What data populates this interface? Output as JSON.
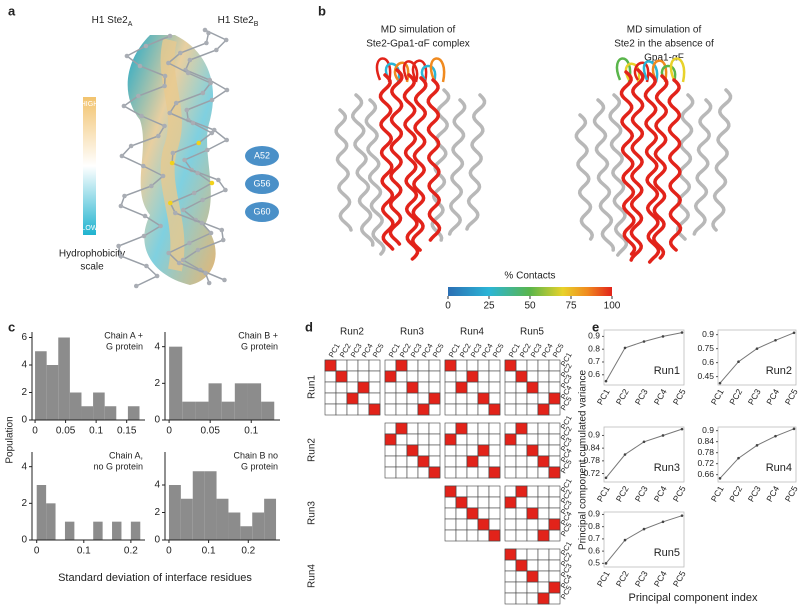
{
  "panel_a": {
    "label": "a",
    "left_title": {
      "text": "H1 Ste2",
      "sub": "A"
    },
    "right_title": {
      "text": "H1 Ste2",
      "sub": "B"
    },
    "scale_high": "HIGH",
    "scale_low": "LOW",
    "scale_title": [
      "Hydrophobicity",
      "scale"
    ],
    "residues": [
      "A52",
      "G56",
      "G60"
    ]
  },
  "panel_b": {
    "label": "b",
    "left_title": [
      "MD simulation of",
      "Ste2-Gpa1-αF complex"
    ],
    "right_title": [
      "MD simulation of",
      "Ste2 in the absence of",
      "Gpa1-αF"
    ],
    "colorbar_title": "% Contacts",
    "colorbar_lim": [
      0,
      100
    ],
    "colorbar_ticks": [
      0,
      25,
      50,
      75,
      100
    ]
  },
  "panel_c": {
    "label": "c",
    "ylabel": "Population",
    "xlabel": "Standard deviation of interface residues",
    "color": "#8c8c8c",
    "plots": [
      {
        "type": "histogram",
        "legend": [
          "Chain A +",
          "G protein"
        ],
        "bins": [
          0,
          0.019,
          0.038,
          0.057,
          0.076,
          0.095,
          0.114,
          0.133,
          0.152,
          0.171
        ],
        "counts": [
          5,
          4,
          6,
          2,
          1,
          2,
          1,
          0,
          1
        ],
        "xlim": [
          -0.005,
          0.18
        ],
        "xticks": [
          0,
          0.05,
          0.1,
          0.15
        ],
        "ylim": [
          0,
          6.4
        ],
        "yticks": [
          0,
          2,
          4,
          6
        ]
      },
      {
        "type": "histogram",
        "legend": [
          "Chain B +",
          "G protein"
        ],
        "bins": [
          0,
          0.016,
          0.032,
          0.048,
          0.064,
          0.08,
          0.096,
          0.112,
          0.128
        ],
        "counts": [
          4,
          1,
          1,
          2,
          1,
          2,
          2,
          1
        ],
        "xlim": [
          -0.005,
          0.135
        ],
        "xticks": [
          0,
          0.05,
          0.1
        ],
        "ylim": [
          0,
          4.8
        ],
        "yticks": [
          0,
          2,
          4
        ]
      },
      {
        "type": "histogram",
        "legend": [
          "Chain A,",
          "no G protein"
        ],
        "bins": [
          0,
          0.02,
          0.04,
          0.06,
          0.08,
          0.1,
          0.12,
          0.14,
          0.16,
          0.18,
          0.2,
          0.22
        ],
        "counts": [
          3,
          2,
          0,
          1,
          0,
          0,
          1,
          0,
          1,
          0,
          1
        ],
        "xlim": [
          -0.01,
          0.23
        ],
        "xticks": [
          0,
          0.1,
          0.2
        ],
        "ylim": [
          0,
          4.8
        ],
        "yticks": [
          0,
          2,
          4
        ]
      },
      {
        "type": "histogram",
        "legend": [
          "Chain B no",
          "G protein"
        ],
        "bins": [
          0,
          0.03,
          0.06,
          0.09,
          0.12,
          0.15,
          0.18,
          0.21,
          0.24,
          0.27
        ],
        "counts": [
          4,
          3,
          5,
          5,
          3,
          2,
          1,
          2,
          3
        ],
        "xlim": [
          -0.01,
          0.28
        ],
        "xticks": [
          0,
          0.1,
          0.2
        ],
        "ylim": [
          0,
          6.4
        ],
        "yticks": [
          0,
          2,
          4
        ]
      }
    ]
  },
  "panel_d": {
    "label": "d",
    "column_runs": [
      "Run2",
      "Run3",
      "Run4",
      "Run5"
    ],
    "row_runs": [
      "Run1",
      "Run2",
      "Run3",
      "Run4"
    ],
    "pcs": [
      "PC1",
      "PC2",
      "PC3",
      "PC4",
      "PC5"
    ],
    "matrices": [
      [
        [
          0,
          1,
          3,
          2,
          4
        ],
        [
          1,
          0,
          2,
          4,
          3
        ],
        [
          0,
          2,
          1,
          3,
          4
        ],
        [
          0,
          1,
          2,
          4,
          3
        ]
      ],
      [
        [
          1,
          0,
          2,
          3,
          4
        ],
        [
          1,
          0,
          3,
          2,
          4
        ],
        [
          1,
          0,
          2,
          3,
          4
        ]
      ],
      [
        [
          0,
          1,
          2,
          3,
          4
        ],
        [
          1,
          0,
          2,
          4,
          3
        ]
      ],
      [
        [
          0,
          1,
          2,
          4,
          3
        ]
      ]
    ]
  },
  "panel_e": {
    "label": "e",
    "ylabel": "Principal component cumulated variance",
    "xlabel": "Principal component index",
    "categories": [
      "PC1",
      "PC2",
      "PC3",
      "PC4",
      "PC5"
    ],
    "plots": [
      {
        "type": "line",
        "name": "Run1",
        "values": [
          0.55,
          0.81,
          0.86,
          0.9,
          0.93
        ],
        "ylim": [
          0.52,
          0.95
        ],
        "yticks": [
          0.6,
          0.7,
          0.8,
          0.9
        ]
      },
      {
        "type": "line",
        "name": "Run2",
        "values": [
          0.38,
          0.61,
          0.75,
          0.84,
          0.92
        ],
        "ylim": [
          0.36,
          0.95
        ],
        "yticks": [
          0.45,
          0.6,
          0.75,
          0.9
        ]
      },
      {
        "type": "line",
        "name": "Run3",
        "values": [
          0.7,
          0.81,
          0.87,
          0.9,
          0.93
        ],
        "ylim": [
          0.68,
          0.94
        ],
        "yticks": [
          0.72,
          0.78,
          0.84,
          0.9
        ]
      },
      {
        "type": "line",
        "name": "Run4",
        "values": [
          0.64,
          0.75,
          0.82,
          0.87,
          0.91
        ],
        "ylim": [
          0.62,
          0.92
        ],
        "yticks": [
          0.66,
          0.72,
          0.78,
          0.84,
          0.9
        ]
      },
      {
        "type": "line",
        "name": "Run5",
        "values": [
          0.5,
          0.69,
          0.78,
          0.84,
          0.89
        ],
        "ylim": [
          0.47,
          0.92
        ],
        "yticks": [
          0.5,
          0.6,
          0.7,
          0.8,
          0.9
        ]
      }
    ]
  }
}
